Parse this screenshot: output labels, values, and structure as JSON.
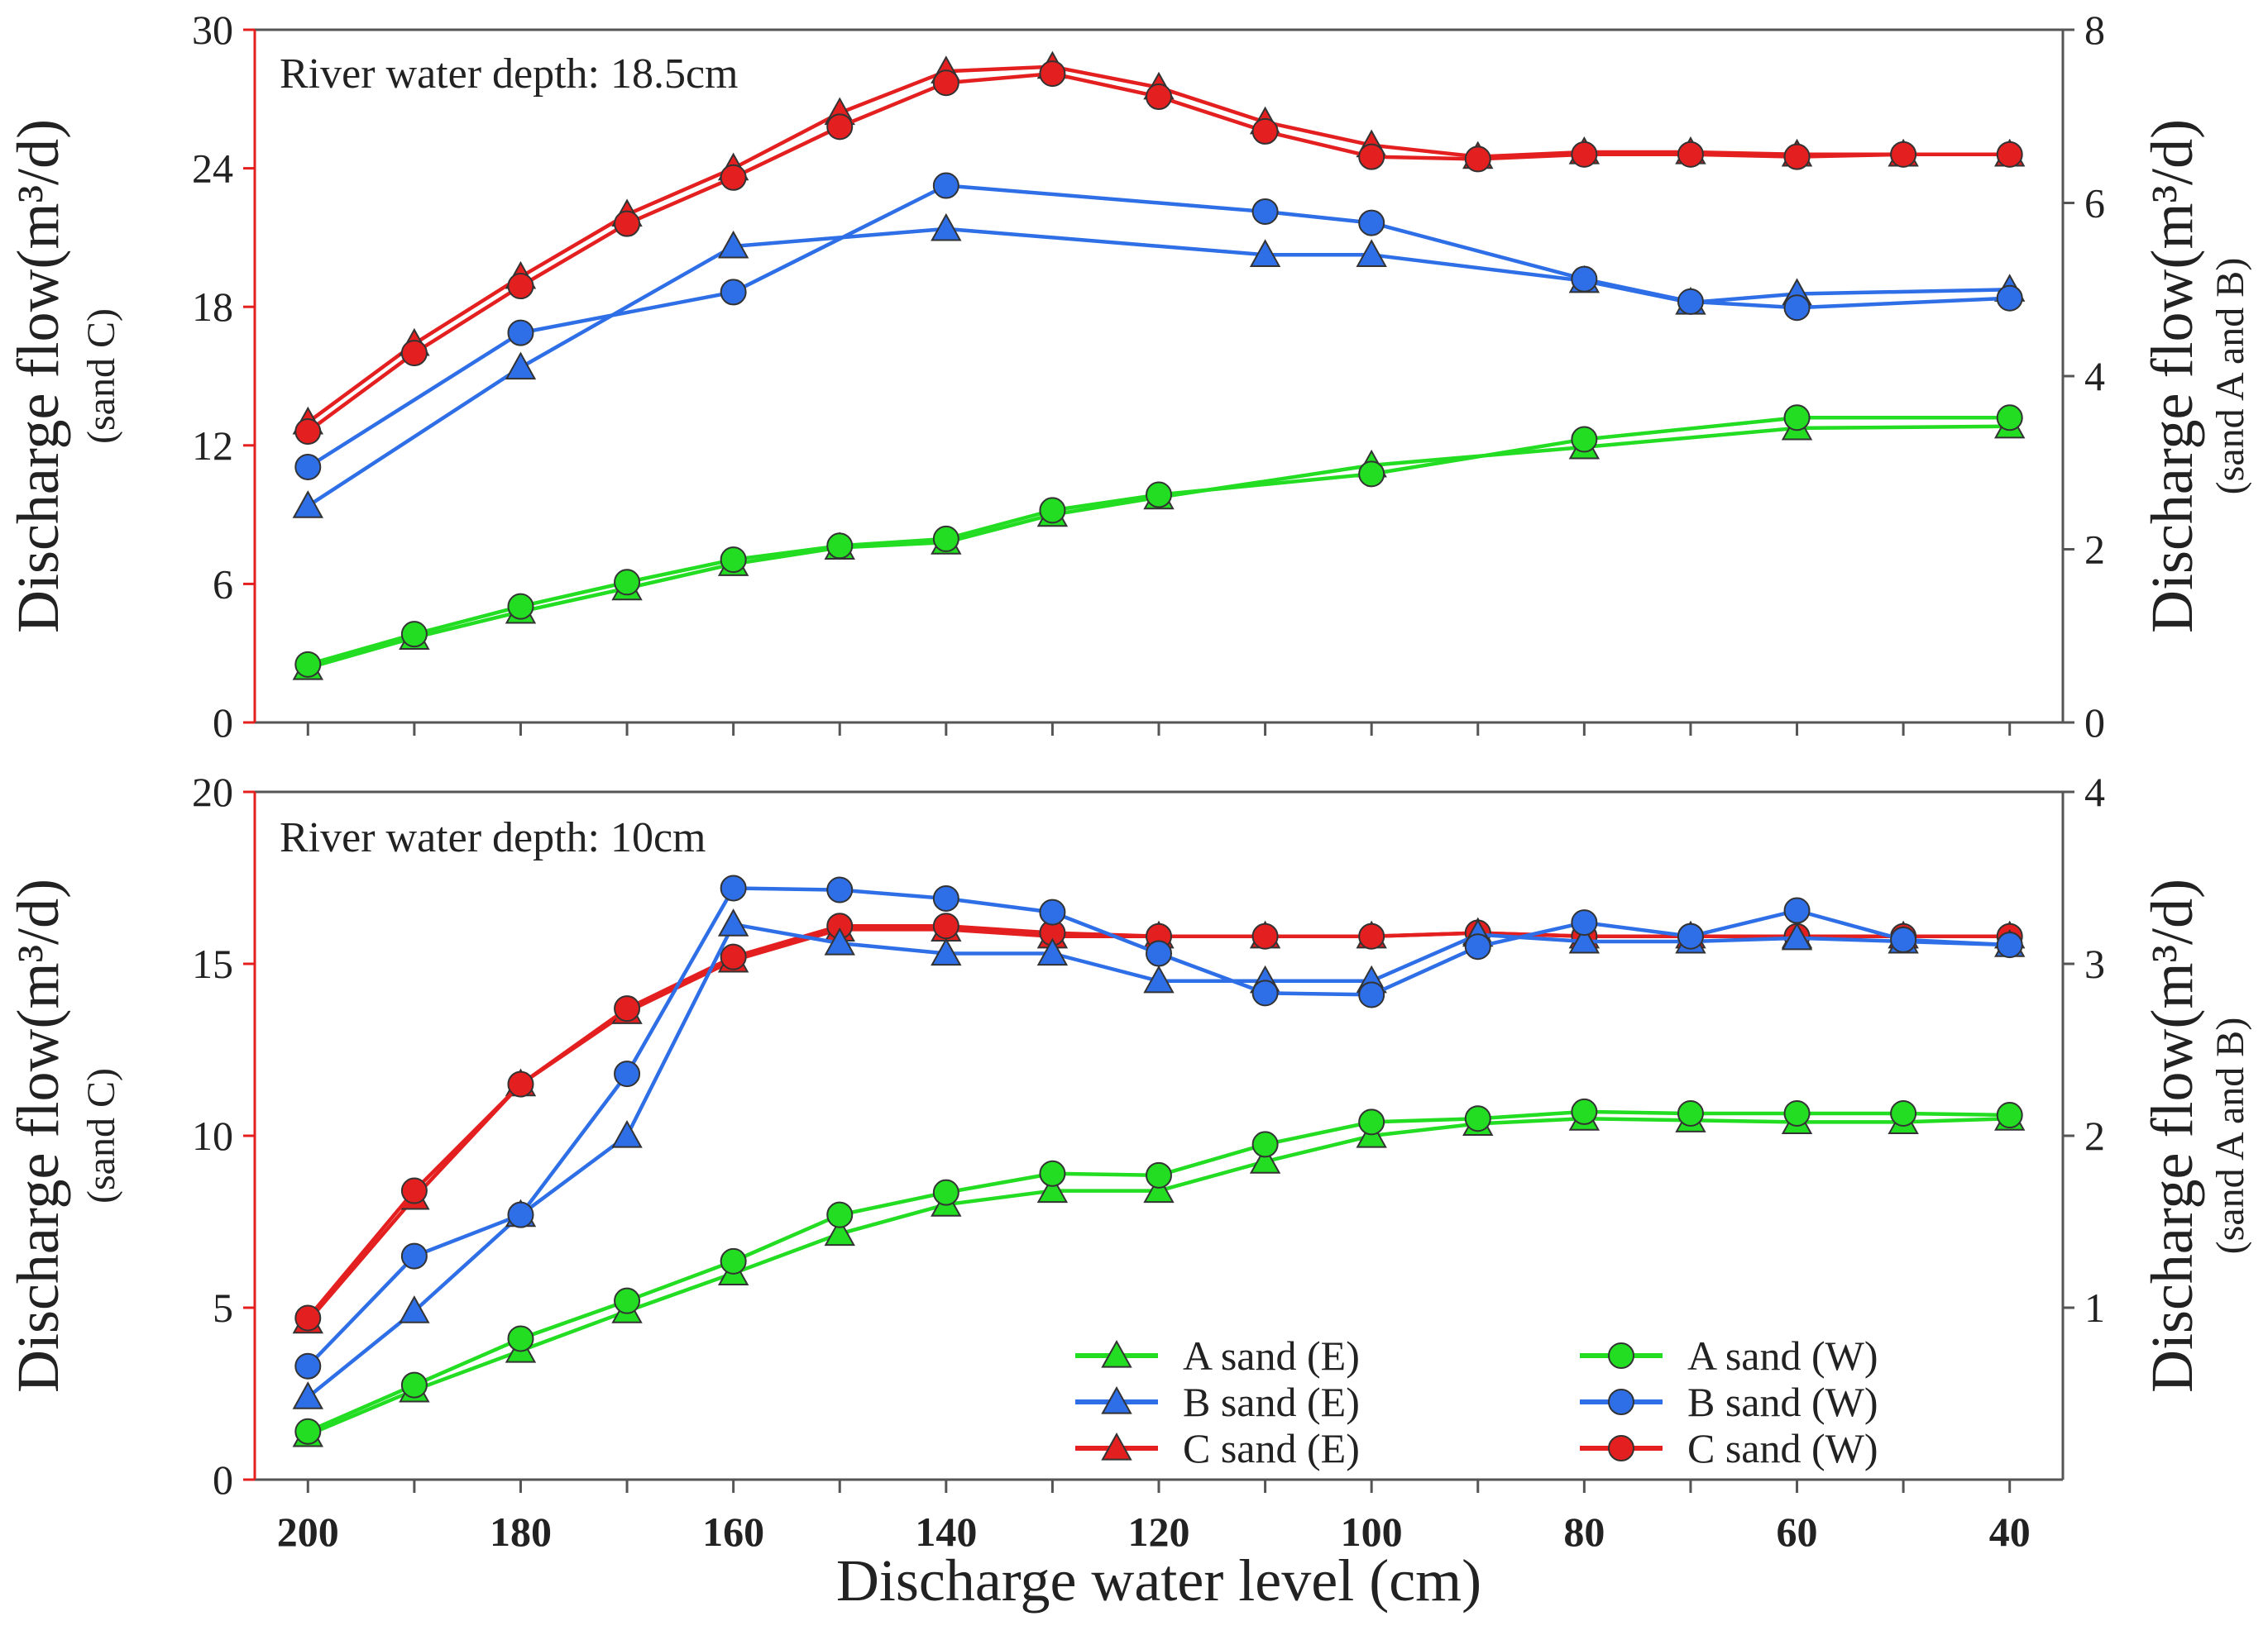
{
  "figure": {
    "xlabel": "Discharge water level (cm)",
    "x_ticks": [
      200,
      180,
      160,
      140,
      120,
      100,
      80,
      60,
      40
    ]
  },
  "legend": {
    "items": [
      {
        "label": "A sand (E)",
        "key": "A_E",
        "marker": "triangle",
        "color": "#22dd22"
      },
      {
        "label": "B sand (E)",
        "key": "B_E",
        "marker": "triangle",
        "color": "#2e6ee6"
      },
      {
        "label": "C sand (E)",
        "key": "C_E",
        "marker": "triangle",
        "color": "#e41f1f"
      },
      {
        "label": "A sand (W)",
        "key": "A_W",
        "marker": "circle",
        "color": "#22dd22"
      },
      {
        "label": "B sand (W)",
        "key": "B_W",
        "marker": "circle",
        "color": "#2e6ee6"
      },
      {
        "label": "C sand (W)",
        "key": "C_W",
        "marker": "circle",
        "color": "#e41f1f"
      }
    ]
  },
  "colors": {
    "A": "#22dd22",
    "B": "#2e6ee6",
    "C": "#e41f1f",
    "axis": "#555555",
    "left_axis": "#e41f1f"
  },
  "chart_data": [
    {
      "type": "line",
      "title": "River water depth: 18.5cm",
      "xlabel": "Discharge water level (cm)",
      "ylabel_left": "Discharge flow(m³/d)",
      "ylabel_left_sub": "(sand C)",
      "ylabel_right": "Discharge flow(m³/d)",
      "ylabel_right_sub": "(sand A and B)",
      "xlim": [
        205,
        35
      ],
      "x_ticks": [
        200,
        180,
        160,
        140,
        120,
        100,
        80,
        60,
        40
      ],
      "ylim_left": [
        0,
        30
      ],
      "yticks_left": [
        0,
        6,
        12,
        18,
        24,
        30
      ],
      "ylim_right": [
        0,
        8
      ],
      "yticks_right": [
        0,
        2,
        4,
        6,
        8
      ],
      "series": [
        {
          "key": "C_E",
          "name": "C sand (E)",
          "axis": "left",
          "marker": "triangle",
          "x": [
            200,
            190,
            180,
            170,
            160,
            150,
            140,
            130,
            120,
            110,
            100,
            90,
            80,
            70,
            60,
            50,
            40
          ],
          "values": [
            13.0,
            16.4,
            19.3,
            22.0,
            24.0,
            26.4,
            28.2,
            28.4,
            27.5,
            26.0,
            25.0,
            24.5,
            24.7,
            24.7,
            24.6,
            24.6,
            24.6
          ]
        },
        {
          "key": "C_W",
          "name": "C sand (W)",
          "axis": "left",
          "marker": "circle",
          "x": [
            200,
            190,
            180,
            170,
            160,
            150,
            140,
            130,
            120,
            110,
            100,
            90,
            80,
            70,
            60,
            50,
            40
          ],
          "values": [
            12.6,
            16.0,
            18.9,
            21.6,
            23.6,
            25.8,
            27.7,
            28.1,
            27.1,
            25.6,
            24.5,
            24.4,
            24.6,
            24.6,
            24.5,
            24.6,
            24.6
          ]
        },
        {
          "key": "B_E",
          "name": "B sand (E)",
          "axis": "right",
          "marker": "triangle",
          "x": [
            200,
            180,
            160,
            140,
            110,
            100,
            80,
            70,
            60,
            40
          ],
          "values": [
            2.5,
            4.1,
            5.5,
            5.7,
            5.4,
            5.4,
            5.1,
            4.85,
            4.95,
            5.0
          ]
        },
        {
          "key": "B_W",
          "name": "B sand (W)",
          "axis": "right",
          "marker": "circle",
          "x": [
            200,
            180,
            160,
            140,
            110,
            100,
            80,
            70,
            60,
            40
          ],
          "values": [
            2.95,
            4.5,
            4.97,
            6.2,
            5.9,
            5.77,
            5.12,
            4.86,
            4.79,
            4.9
          ]
        },
        {
          "key": "A_E",
          "name": "A sand (E)",
          "axis": "right",
          "marker": "triangle",
          "x": [
            200,
            190,
            180,
            170,
            160,
            150,
            140,
            130,
            120,
            100,
            80,
            60,
            40
          ],
          "values": [
            0.63,
            0.98,
            1.28,
            1.55,
            1.83,
            2.02,
            2.08,
            2.4,
            2.6,
            2.97,
            3.18,
            3.4,
            3.42
          ]
        },
        {
          "key": "A_W",
          "name": "A sand (W)",
          "axis": "right",
          "marker": "circle",
          "x": [
            200,
            190,
            180,
            170,
            160,
            150,
            140,
            130,
            120,
            100,
            80,
            60,
            40
          ],
          "values": [
            0.67,
            1.02,
            1.34,
            1.62,
            1.88,
            2.04,
            2.12,
            2.45,
            2.63,
            2.87,
            3.27,
            3.52,
            3.52
          ]
        }
      ]
    },
    {
      "type": "line",
      "title": "River water depth: 10cm",
      "xlabel": "Discharge water level (cm)",
      "ylabel_left": "Discharge flow(m³/d)",
      "ylabel_left_sub": "(sand C)",
      "ylabel_right": "Discharge flow(m³/d)",
      "ylabel_right_sub": "(sand A and B)",
      "xlim": [
        205,
        35
      ],
      "x_ticks": [
        200,
        180,
        160,
        140,
        120,
        100,
        80,
        60,
        40
      ],
      "ylim_left": [
        0,
        20
      ],
      "yticks_left": [
        0,
        5,
        10,
        15,
        20
      ],
      "ylim_right": [
        0,
        4
      ],
      "yticks_right": [
        1,
        2,
        3,
        4
      ],
      "series": [
        {
          "key": "C_E",
          "name": "C sand (E)",
          "axis": "left",
          "marker": "triangle",
          "x": [
            200,
            190,
            180,
            170,
            160,
            150,
            140,
            130,
            120,
            110,
            100,
            90,
            80,
            70,
            60,
            50,
            40
          ],
          "values": [
            4.6,
            8.2,
            11.5,
            13.6,
            15.1,
            16.0,
            16.0,
            15.8,
            15.8,
            15.8,
            15.8,
            15.9,
            15.8,
            15.8,
            15.8,
            15.8,
            15.8
          ]
        },
        {
          "key": "C_W",
          "name": "C sand (W)",
          "axis": "left",
          "marker": "circle",
          "x": [
            200,
            190,
            180,
            170,
            160,
            150,
            140,
            130,
            120,
            110,
            100,
            90,
            80,
            70,
            60,
            50,
            40
          ],
          "values": [
            4.7,
            8.4,
            11.5,
            13.7,
            15.2,
            16.1,
            16.1,
            15.9,
            15.8,
            15.8,
            15.8,
            15.9,
            15.8,
            15.8,
            15.8,
            15.8,
            15.8
          ]
        },
        {
          "key": "B_E",
          "name": "B sand (E)",
          "axis": "right",
          "marker": "triangle",
          "x": [
            200,
            190,
            180,
            170,
            160,
            150,
            140,
            130,
            120,
            110,
            100,
            90,
            80,
            70,
            60,
            50,
            40
          ],
          "values": [
            0.48,
            0.98,
            1.54,
            2.0,
            3.23,
            3.12,
            3.06,
            3.06,
            2.9,
            2.9,
            2.9,
            3.17,
            3.13,
            3.13,
            3.15,
            3.13,
            3.11
          ]
        },
        {
          "key": "B_W",
          "name": "B sand (W)",
          "axis": "right",
          "marker": "circle",
          "x": [
            200,
            190,
            180,
            170,
            160,
            150,
            140,
            130,
            120,
            110,
            100,
            90,
            80,
            70,
            60,
            50,
            40
          ],
          "values": [
            0.66,
            1.3,
            1.54,
            2.36,
            3.44,
            3.43,
            3.38,
            3.3,
            3.06,
            2.83,
            2.82,
            3.1,
            3.24,
            3.16,
            3.31,
            3.14,
            3.11
          ]
        },
        {
          "key": "A_E",
          "name": "A sand (E)",
          "axis": "right",
          "marker": "triangle",
          "x": [
            200,
            190,
            180,
            170,
            160,
            150,
            140,
            130,
            120,
            110,
            100,
            90,
            80,
            70,
            60,
            50,
            40
          ],
          "values": [
            0.26,
            0.52,
            0.75,
            0.98,
            1.2,
            1.43,
            1.6,
            1.68,
            1.68,
            1.85,
            2.0,
            2.07,
            2.1,
            2.09,
            2.08,
            2.08,
            2.1
          ]
        },
        {
          "key": "A_W",
          "name": "A sand (W)",
          "axis": "right",
          "marker": "circle",
          "x": [
            200,
            190,
            180,
            170,
            160,
            150,
            140,
            130,
            120,
            110,
            100,
            90,
            80,
            70,
            60,
            50,
            40
          ],
          "values": [
            0.28,
            0.55,
            0.82,
            1.04,
            1.27,
            1.54,
            1.67,
            1.78,
            1.77,
            1.95,
            2.08,
            2.1,
            2.14,
            2.13,
            2.13,
            2.13,
            2.12
          ]
        }
      ]
    }
  ]
}
